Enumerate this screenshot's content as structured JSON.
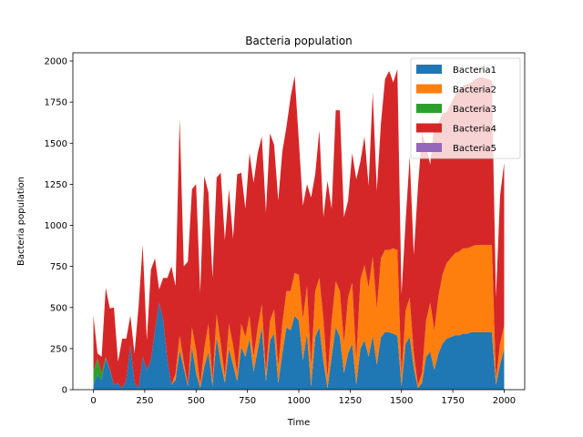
{
  "chart_data": {
    "type": "area",
    "stacked": true,
    "title": "Bacteria population",
    "xlabel": "Time",
    "ylabel": "Bacteria population",
    "xlim": [
      -100,
      2100
    ],
    "ylim": [
      0,
      2050
    ],
    "xticks": [
      0,
      250,
      500,
      750,
      1000,
      1250,
      1500,
      1750,
      2000
    ],
    "yticks": [
      0,
      250,
      500,
      750,
      1000,
      1250,
      1500,
      1750,
      2000
    ],
    "grid": false,
    "legend_position": "top-right",
    "x": [
      0,
      20,
      40,
      60,
      80,
      100,
      120,
      140,
      160,
      180,
      200,
      220,
      240,
      260,
      280,
      300,
      320,
      340,
      360,
      380,
      400,
      420,
      440,
      460,
      480,
      500,
      520,
      540,
      560,
      580,
      600,
      620,
      640,
      660,
      680,
      700,
      720,
      740,
      760,
      780,
      800,
      820,
      840,
      860,
      880,
      900,
      920,
      940,
      960,
      980,
      1000,
      1020,
      1040,
      1060,
      1080,
      1100,
      1120,
      1140,
      1160,
      1180,
      1200,
      1220,
      1240,
      1260,
      1280,
      1300,
      1320,
      1340,
      1360,
      1380,
      1400,
      1420,
      1440,
      1460,
      1480,
      1500,
      1520,
      1540,
      1560,
      1580,
      1600,
      1620,
      1640,
      1660,
      1680,
      1700,
      1720,
      1740,
      1760,
      1780,
      1800,
      1820,
      1840,
      1860,
      1880,
      1900,
      1920,
      1940,
      1960,
      1980,
      2000
    ],
    "series": [
      {
        "name": "Bacteria1",
        "color": "#1f77b4",
        "values": [
          30,
          90,
          60,
          190,
          120,
          30,
          40,
          10,
          60,
          270,
          40,
          10,
          200,
          120,
          180,
          360,
          530,
          420,
          180,
          30,
          60,
          240,
          130,
          20,
          260,
          100,
          10,
          140,
          230,
          20,
          320,
          160,
          40,
          250,
          150,
          50,
          260,
          200,
          310,
          110,
          240,
          380,
          50,
          300,
          340,
          40,
          220,
          380,
          360,
          450,
          420,
          180,
          340,
          20,
          320,
          380,
          170,
          10,
          200,
          380,
          320,
          100,
          220,
          280,
          30,
          250,
          300,
          200,
          330,
          150,
          320,
          350,
          350,
          340,
          330,
          20,
          280,
          320,
          130,
          10,
          40,
          200,
          230,
          120,
          220,
          280,
          310,
          320,
          330,
          330,
          340,
          340,
          350,
          350,
          350,
          350,
          350,
          350,
          30,
          150,
          250
        ]
      },
      {
        "name": "Bacteria2",
        "color": "#ff7f0e",
        "values": [
          0,
          0,
          0,
          0,
          0,
          0,
          0,
          0,
          0,
          0,
          0,
          0,
          0,
          0,
          0,
          0,
          0,
          0,
          0,
          0,
          40,
          90,
          40,
          10,
          120,
          140,
          20,
          110,
          170,
          30,
          140,
          120,
          40,
          150,
          120,
          50,
          140,
          120,
          140,
          90,
          140,
          140,
          50,
          120,
          150,
          100,
          180,
          220,
          240,
          260,
          280,
          250,
          290,
          120,
          280,
          300,
          260,
          60,
          220,
          280,
          280,
          180,
          340,
          370,
          150,
          420,
          460,
          420,
          480,
          340,
          480,
          500,
          500,
          520,
          520,
          60,
          200,
          240,
          90,
          20,
          60,
          220,
          300,
          240,
          350,
          420,
          460,
          480,
          500,
          510,
          520,
          520,
          520,
          530,
          530,
          530,
          530,
          530,
          30,
          130,
          140
        ]
      },
      {
        "name": "Bacteria3",
        "color": "#2ca02c",
        "values": [
          80,
          100,
          40,
          10,
          5,
          0,
          0,
          0,
          0,
          0,
          0,
          0,
          0,
          0,
          0,
          0,
          0,
          0,
          0,
          0,
          0,
          0,
          0,
          0,
          0,
          0,
          0,
          0,
          0,
          0,
          0,
          0,
          0,
          0,
          0,
          0,
          0,
          0,
          0,
          0,
          0,
          0,
          0,
          0,
          0,
          0,
          0,
          0,
          0,
          0,
          0,
          0,
          0,
          0,
          0,
          0,
          0,
          0,
          0,
          0,
          0,
          0,
          0,
          0,
          0,
          0,
          0,
          0,
          0,
          0,
          0,
          0,
          0,
          0,
          0,
          0,
          0,
          0,
          0,
          0,
          0,
          0,
          0,
          0,
          0,
          0,
          0,
          0,
          0,
          0,
          0,
          0,
          0,
          0,
          0,
          0,
          0,
          0,
          0,
          0,
          0
        ]
      },
      {
        "name": "Bacteria4",
        "color": "#d62728",
        "values": [
          340,
          30,
          100,
          420,
          370,
          470,
          130,
          300,
          250,
          180,
          180,
          500,
          680,
          180,
          550,
          440,
          80,
          260,
          500,
          720,
          530,
          1320,
          580,
          750,
          840,
          1010,
          560,
          1050,
          800,
          630,
          830,
          1040,
          830,
          820,
          650,
          1210,
          920,
          780,
          990,
          1060,
          1060,
          1020,
          980,
          1140,
          1000,
          1010,
          1050,
          1000,
          1180,
          1200,
          820,
          690,
          620,
          1030,
          710,
          900,
          620,
          1200,
          680,
          1040,
          1100,
          770,
          590,
          790,
          1100,
          720,
          780,
          620,
          1000,
          720,
          820,
          1040,
          1090,
          1010,
          1100,
          500,
          540,
          860,
          600,
          1200,
          1460,
          1060,
          840,
          1260,
          1050,
          980,
          920,
          940,
          960,
          980,
          990,
          1000,
          1000,
          1010,
          1020,
          1020,
          1010,
          1000,
          500,
          900,
          990
        ]
      },
      {
        "name": "Bacteria5",
        "color": "#9467bd",
        "values": [
          0,
          0,
          0,
          0,
          0,
          0,
          0,
          0,
          0,
          0,
          0,
          0,
          0,
          0,
          0,
          0,
          0,
          0,
          0,
          0,
          0,
          0,
          0,
          0,
          0,
          0,
          0,
          0,
          0,
          0,
          0,
          0,
          0,
          0,
          0,
          0,
          0,
          0,
          0,
          0,
          0,
          0,
          0,
          0,
          0,
          0,
          0,
          0,
          0,
          0,
          0,
          0,
          0,
          0,
          0,
          0,
          0,
          0,
          0,
          0,
          0,
          0,
          0,
          0,
          0,
          0,
          0,
          0,
          0,
          0,
          0,
          0,
          0,
          0,
          0,
          0,
          0,
          0,
          0,
          0,
          0,
          0,
          0,
          0,
          0,
          0,
          0,
          0,
          0,
          0,
          0,
          0,
          0,
          0,
          0,
          0,
          0,
          0,
          0,
          0,
          0
        ]
      }
    ]
  }
}
